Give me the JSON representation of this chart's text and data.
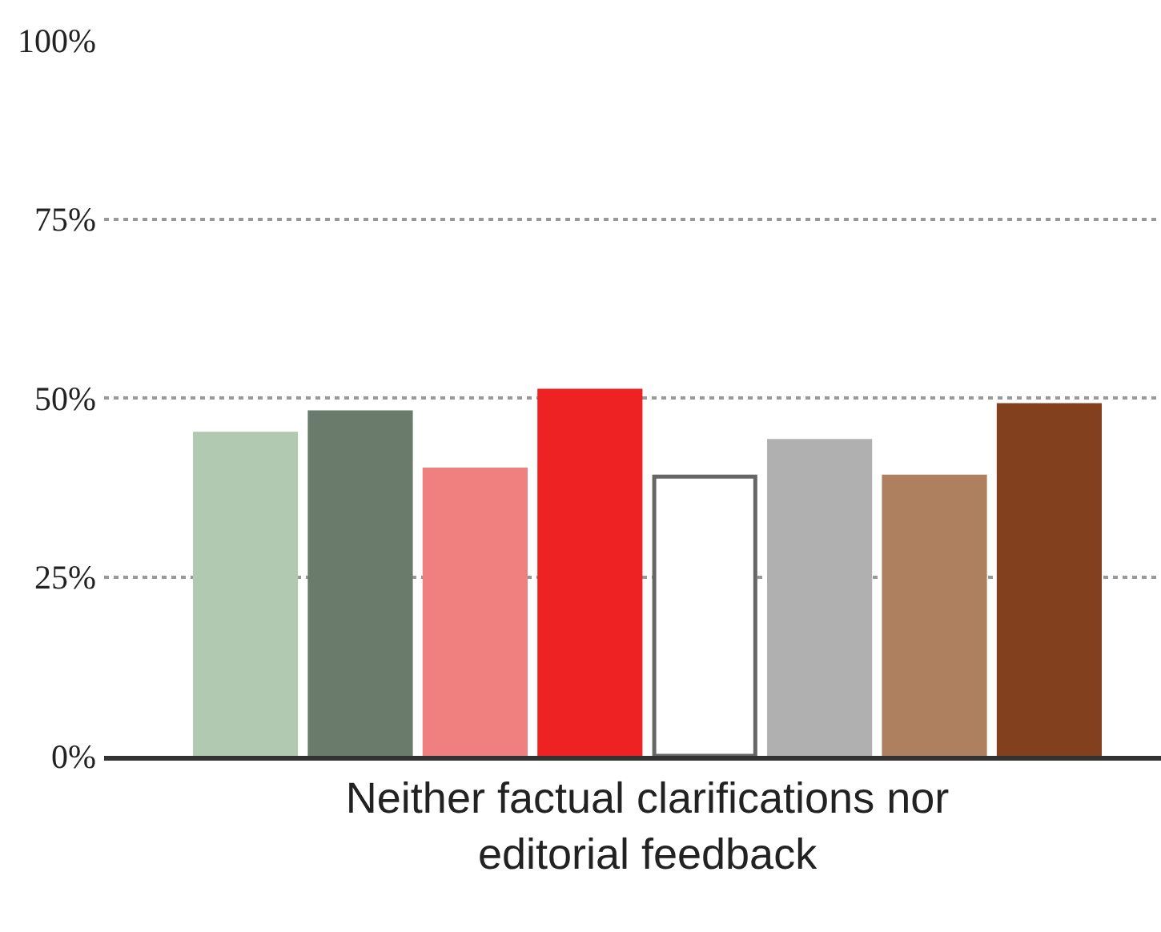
{
  "chart_data": {
    "type": "bar",
    "categories": [
      "Neither factual clarifications nor editorial feedback"
    ],
    "series": [
      {
        "color": "#b0c9b0",
        "values": [
          45
        ]
      },
      {
        "color": "#6b7b6b",
        "values": [
          48
        ]
      },
      {
        "color": "#f08080",
        "values": [
          40
        ]
      },
      {
        "color": "#ee2222",
        "values": [
          51
        ]
      },
      {
        "color": "#ffffff",
        "values": [
          39
        ]
      },
      {
        "color": "#b0b0b0",
        "values": [
          44
        ]
      },
      {
        "color": "#ae8060",
        "values": [
          39
        ]
      },
      {
        "color": "#82401e",
        "values": [
          49
        ]
      }
    ],
    "ylim": [
      0,
      100
    ],
    "yticks": [
      {
        "value": 0,
        "label": "0%"
      },
      {
        "value": 25,
        "label": "25%"
      },
      {
        "value": 50,
        "label": "50%"
      },
      {
        "value": 75,
        "label": "75%"
      },
      {
        "value": 100,
        "label": "100%"
      }
    ],
    "grid": "y"
  }
}
